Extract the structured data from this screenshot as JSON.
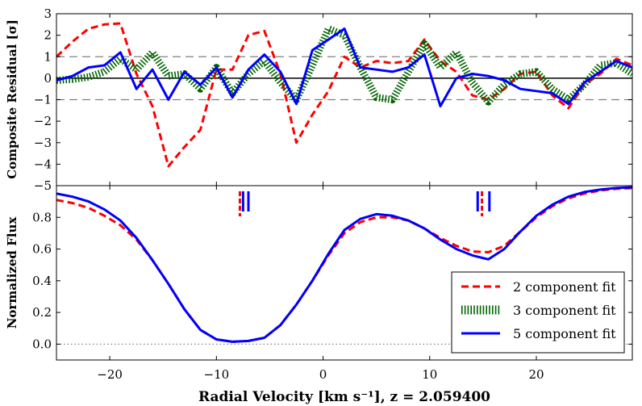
{
  "chart_data": [
    {
      "type": "line",
      "panel": "top",
      "ylabel": "Composite Residual [σ]",
      "xlim": [
        -25,
        29
      ],
      "ylim": [
        -5,
        3
      ],
      "yticks": [
        3,
        2,
        1,
        0,
        -1,
        -2,
        -3,
        -4,
        -5
      ],
      "grid": false,
      "reference_lines": [
        {
          "y": 0,
          "style": "solid",
          "color": "#000000"
        },
        {
          "y": 1,
          "style": "dashed",
          "color": "#808080"
        },
        {
          "y": -1,
          "style": "dashed",
          "color": "#808080"
        }
      ],
      "series": [
        {
          "name": "2 component fit",
          "color": "#ff0000",
          "style": "dashed",
          "x": [
            -25,
            -23.5,
            -22,
            -20.5,
            -19,
            -17.5,
            -16,
            -14.5,
            -13,
            -11.5,
            -10,
            -8.5,
            -7,
            -5.5,
            -4,
            -2.5,
            -1,
            0.5,
            2,
            3.5,
            5,
            6.5,
            8,
            9.5,
            11,
            12.5,
            14,
            15.5,
            17,
            18.5,
            20,
            21.5,
            23,
            24.5,
            26,
            27.5,
            29
          ],
          "values": [
            1.0,
            1.7,
            2.3,
            2.5,
            2.55,
            0.2,
            -1.3,
            -4.1,
            -3.2,
            -2.4,
            0.4,
            0.4,
            2.0,
            2.2,
            0.2,
            -3.0,
            -1.7,
            -0.6,
            1.0,
            0.5,
            0.8,
            0.7,
            0.8,
            1.8,
            0.8,
            0.3,
            -0.8,
            -1.0,
            -0.5,
            0.2,
            0.3,
            -0.8,
            -1.4,
            -0.3,
            0.2,
            0.9,
            0.6
          ]
        },
        {
          "name": "3 component fit",
          "color": "#006400",
          "style": "hatched",
          "x": [
            -25,
            -23.5,
            -22,
            -20.5,
            -19,
            -17.5,
            -16,
            -14.5,
            -13,
            -11.5,
            -10,
            -8.5,
            -7,
            -5.5,
            -4,
            -2.5,
            -1,
            0.5,
            2,
            3.5,
            5,
            6.5,
            8,
            9.5,
            11,
            12.5,
            14,
            15.5,
            17,
            18.5,
            20,
            21.5,
            23,
            24.5,
            26,
            27.5,
            29
          ],
          "values": [
            -0.1,
            -0.05,
            0.05,
            0.3,
            0.9,
            0.4,
            1.2,
            0.1,
            0.2,
            -0.5,
            0.5,
            -0.7,
            0.2,
            0.8,
            -0.2,
            -1.0,
            0.6,
            2.3,
            2.0,
            0.5,
            -0.9,
            -1.0,
            0.3,
            1.6,
            0.5,
            1.2,
            -0.2,
            -1.1,
            -0.3,
            0.2,
            0.3,
            -0.5,
            -1.0,
            -0.3,
            0.6,
            0.7,
            0.2
          ]
        },
        {
          "name": "5 component fit",
          "color": "#0000ff",
          "style": "solid",
          "x": [
            -25,
            -23.5,
            -22,
            -20.5,
            -19,
            -17.5,
            -16,
            -14.5,
            -13,
            -11.5,
            -10,
            -8.5,
            -7,
            -5.5,
            -4,
            -2.5,
            -1,
            0.5,
            2,
            3.5,
            5,
            6.5,
            8,
            9.5,
            11,
            12.5,
            14,
            15.5,
            17,
            18.5,
            20,
            21.5,
            23,
            24.5,
            26,
            27.5,
            29
          ],
          "values": [
            -0.1,
            0.1,
            0.5,
            0.6,
            1.2,
            -0.5,
            0.4,
            -1.0,
            0.3,
            -0.3,
            0.5,
            -0.9,
            0.4,
            1.1,
            0.3,
            -1.2,
            1.3,
            1.8,
            2.3,
            0.5,
            0.4,
            0.3,
            0.5,
            1.1,
            -1.3,
            0.0,
            0.2,
            0.1,
            -0.1,
            -0.5,
            -0.6,
            -0.7,
            -1.2,
            -0.2,
            0.3,
            0.8,
            0.5
          ]
        }
      ]
    },
    {
      "type": "line",
      "panel": "bottom",
      "ylabel": "Normalized Flux",
      "xlabel": "Radial Velocity [km s⁻¹], z = 2.059400",
      "xlim": [
        -25,
        29
      ],
      "ylim": [
        -0.1,
        1.0
      ],
      "yticks": [
        0.0,
        0.2,
        0.4,
        0.6,
        0.8
      ],
      "xticks": [
        -20,
        -10,
        0,
        10,
        20
      ],
      "xtick_labels": [
        "−20",
        "−10",
        "0",
        "10",
        "20"
      ],
      "grid": false,
      "reference_lines": [
        {
          "y": 0,
          "style": "dotted",
          "color": "#808080"
        }
      ],
      "component_markers": [
        {
          "x": -7.8,
          "color": "#ff0000",
          "style": "dashed"
        },
        {
          "x": -7.5,
          "color": "#0000ff",
          "style": "solid"
        },
        {
          "x": -7.0,
          "color": "#0000ff",
          "style": "solid"
        },
        {
          "x": 14.5,
          "color": "#0000ff",
          "style": "solid"
        },
        {
          "x": 14.9,
          "color": "#ff0000",
          "style": "dashed"
        },
        {
          "x": 15.6,
          "color": "#0000ff",
          "style": "solid"
        }
      ],
      "series": [
        {
          "name": "2 component fit",
          "color": "#ff0000",
          "style": "dashed",
          "x": [
            -25,
            -23.5,
            -22,
            -20.5,
            -19,
            -17.5,
            -16,
            -14.5,
            -13,
            -11.5,
            -10,
            -8.5,
            -7,
            -5.5,
            -4,
            -2.5,
            -1,
            0.5,
            2,
            3.5,
            5,
            6.5,
            8,
            9.5,
            11,
            12.5,
            14,
            15.5,
            17,
            18.5,
            20,
            21.5,
            23,
            24.5,
            26,
            27.5,
            29
          ],
          "values": [
            0.91,
            0.89,
            0.86,
            0.81,
            0.75,
            0.66,
            0.53,
            0.38,
            0.22,
            0.09,
            0.03,
            0.015,
            0.02,
            0.04,
            0.12,
            0.25,
            0.4,
            0.56,
            0.7,
            0.77,
            0.8,
            0.8,
            0.78,
            0.73,
            0.67,
            0.62,
            0.585,
            0.58,
            0.62,
            0.71,
            0.8,
            0.87,
            0.92,
            0.95,
            0.97,
            0.98,
            0.985
          ]
        },
        {
          "name": "3 component fit",
          "color": "#006400",
          "style": "hatched",
          "x": [
            -25,
            -23.5,
            -22,
            -20.5,
            -19,
            -17.5,
            -16,
            -14.5,
            -13,
            -11.5,
            -10,
            -8.5,
            -7,
            -5.5,
            -4,
            -2.5,
            -1,
            0.5,
            2,
            3.5,
            5,
            6.5,
            8,
            9.5,
            11,
            12.5,
            14,
            15.5,
            17,
            18.5,
            20,
            21.5,
            23,
            24.5,
            26,
            27.5,
            29
          ],
          "values": [
            0.94,
            0.92,
            0.89,
            0.84,
            0.77,
            0.67,
            0.53,
            0.38,
            0.22,
            0.09,
            0.03,
            0.015,
            0.02,
            0.04,
            0.12,
            0.25,
            0.4,
            0.57,
            0.72,
            0.79,
            0.815,
            0.81,
            0.78,
            0.73,
            0.66,
            0.6,
            0.56,
            0.54,
            0.6,
            0.71,
            0.81,
            0.88,
            0.93,
            0.96,
            0.975,
            0.985,
            0.99
          ]
        },
        {
          "name": "5 component fit",
          "color": "#0000ff",
          "style": "solid",
          "x": [
            -25,
            -23.5,
            -22,
            -20.5,
            -19,
            -17.5,
            -16,
            -14.5,
            -13,
            -11.5,
            -10,
            -8.5,
            -7,
            -5.5,
            -4,
            -2.5,
            -1,
            0.5,
            2,
            3.5,
            5,
            6.5,
            8,
            9.5,
            11,
            12.5,
            14,
            15.5,
            17,
            18.5,
            20,
            21.5,
            23,
            24.5,
            26,
            27.5,
            29
          ],
          "values": [
            0.95,
            0.93,
            0.9,
            0.85,
            0.78,
            0.67,
            0.53,
            0.38,
            0.22,
            0.09,
            0.03,
            0.015,
            0.02,
            0.04,
            0.12,
            0.25,
            0.4,
            0.57,
            0.72,
            0.79,
            0.82,
            0.81,
            0.78,
            0.73,
            0.66,
            0.6,
            0.56,
            0.535,
            0.6,
            0.71,
            0.81,
            0.88,
            0.93,
            0.96,
            0.975,
            0.985,
            0.99
          ]
        }
      ],
      "legend": {
        "placement": "bottom-right",
        "entries": [
          "2 component fit",
          "3 component fit",
          "5 component fit"
        ]
      }
    }
  ]
}
